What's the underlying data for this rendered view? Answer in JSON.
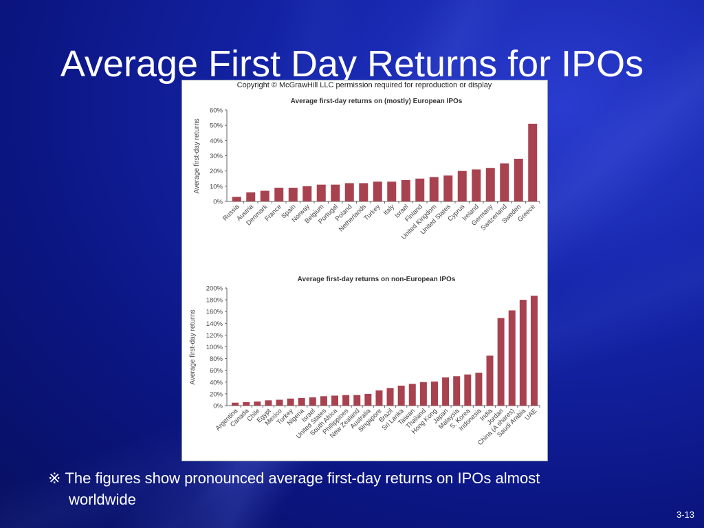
{
  "slide": {
    "title": "Average First Day Returns for IPOs",
    "caption_mark": "※",
    "caption_line1": "The figures show pronounced average first-day returns on IPOs almost",
    "caption_line2": "worldwide",
    "page_number": "3-13"
  },
  "figure": {
    "copyright": "Copyright © McGrawHill LLC permission required for reproduction or display"
  },
  "chart_data": [
    {
      "type": "bar",
      "title": "Average first-day returns on (mostly) European IPOs",
      "ylabel": "Average first-day returns",
      "xlabel": "",
      "ylim": [
        0,
        60
      ],
      "yticks": [
        0,
        10,
        20,
        30,
        40,
        50,
        60
      ],
      "ytick_labels": [
        "0%",
        "10%",
        "20%",
        "30%",
        "40%",
        "50%",
        "60%"
      ],
      "categories": [
        "Russia",
        "Austria",
        "Denmark",
        "France",
        "Spain",
        "Norway",
        "Belgium",
        "Portugal",
        "Poland",
        "Netherlands",
        "Turkey",
        "Italy",
        "Israel",
        "Finland",
        "United Kingdom",
        "United States",
        "Cyprus",
        "Ireland",
        "Germany",
        "Switzerland",
        "Sweden",
        "Greece"
      ],
      "values": [
        3,
        6,
        7,
        9,
        9,
        10,
        11,
        11,
        12,
        12,
        13,
        13,
        14,
        15,
        16,
        17,
        20,
        21,
        22,
        25,
        28,
        51
      ]
    },
    {
      "type": "bar",
      "title": "Average first-day returns on non-European IPOs",
      "ylabel": "Average first-day returns",
      "xlabel": "",
      "ylim": [
        0,
        200
      ],
      "yticks": [
        0,
        20,
        40,
        60,
        80,
        100,
        120,
        140,
        160,
        180,
        200
      ],
      "ytick_labels": [
        "0%",
        "20%",
        "40%",
        "60%",
        "80%",
        "100%",
        "120%",
        "140%",
        "160%",
        "180%",
        "200%"
      ],
      "categories": [
        "Argentina",
        "Canada",
        "Chile",
        "Egypt",
        "Mexico",
        "Turkey",
        "Nigeria",
        "Israel",
        "United States",
        "South Africa",
        "Phillippines",
        "New Zealand",
        "Australia",
        "Singapore",
        "Brazil",
        "Sri Lanka",
        "Taiwan",
        "Thailand",
        "Hong Kong",
        "Japan",
        "Malaysia",
        "S. Korea",
        "Indonesia",
        "India",
        "Jordan",
        "China (A shares)",
        "Saudi Arabia",
        "UAE"
      ],
      "values": [
        5,
        6,
        7,
        9,
        10,
        12,
        13,
        14,
        16,
        17,
        18,
        18,
        20,
        26,
        30,
        34,
        37,
        40,
        41,
        48,
        50,
        53,
        56,
        85,
        149,
        162,
        180,
        187
      ]
    }
  ]
}
